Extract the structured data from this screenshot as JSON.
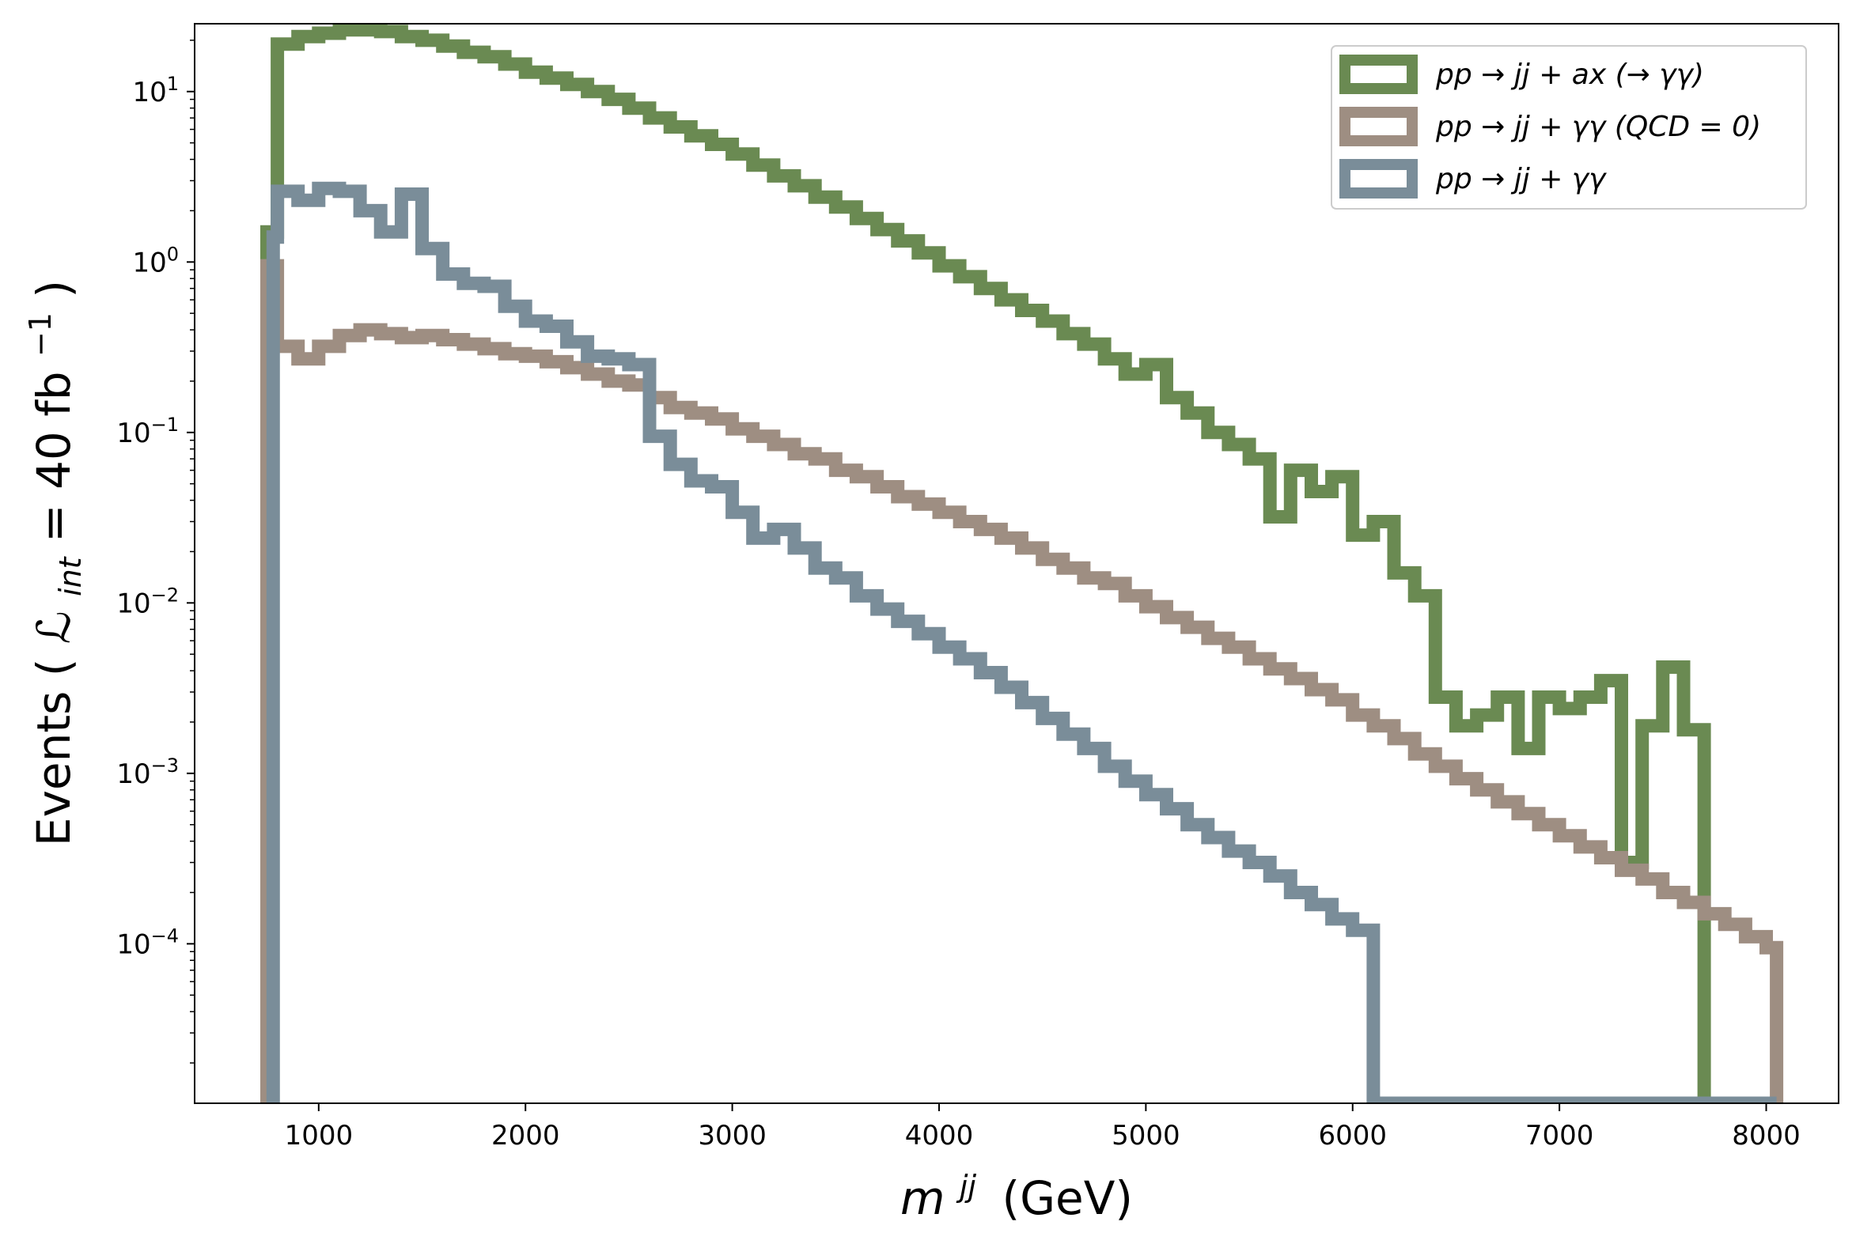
{
  "chart_data": {
    "type": "step-histogram",
    "xlabel": "m^{jj} (GeV)",
    "xlabel_main": "m",
    "xlabel_sup": "jj",
    "xlabel_unit": "(GeV)",
    "ylabel": "Events (ℒ_int = 40 fb⁻¹)",
    "ylabel_pre": "Events (",
    "ylabel_L": "ℒ",
    "ylabel_sub": "int",
    "ylabel_mid": " = 40 fb",
    "ylabel_sup": "−1",
    "ylabel_post": ")",
    "xlim": [
      400,
      8350
    ],
    "ylog": true,
    "ylim": [
      1.16e-05,
      25
    ],
    "x_ticks": [
      {
        "value": 1000,
        "label": "1000"
      },
      {
        "value": 2000,
        "label": "2000"
      },
      {
        "value": 3000,
        "label": "3000"
      },
      {
        "value": 4000,
        "label": "4000"
      },
      {
        "value": 5000,
        "label": "5000"
      },
      {
        "value": 6000,
        "label": "6000"
      },
      {
        "value": 7000,
        "label": "7000"
      },
      {
        "value": 8000,
        "label": "8000"
      }
    ],
    "y_ticks": [
      {
        "value": 10,
        "base": "10",
        "exp": "1"
      },
      {
        "value": 1,
        "base": "10",
        "exp": "0"
      },
      {
        "value": 0.1,
        "base": "10",
        "exp": "−1"
      },
      {
        "value": 0.01,
        "base": "10",
        "exp": "−2"
      },
      {
        "value": 0.001,
        "base": "10",
        "exp": "−3"
      },
      {
        "value": 0.0001,
        "base": "10",
        "exp": "−4"
      }
    ],
    "legend_position": "top-right",
    "series": [
      {
        "id": "signal",
        "label": "pp → jj + ax (→ γγ)",
        "color": "#6a8a52",
        "points": [
          [
            750,
            1.5
          ],
          [
            800,
            19
          ],
          [
            900,
            21
          ],
          [
            1000,
            22
          ],
          [
            1100,
            23
          ],
          [
            1200,
            23
          ],
          [
            1300,
            22.5
          ],
          [
            1400,
            21
          ],
          [
            1500,
            20
          ],
          [
            1600,
            18.5
          ],
          [
            1700,
            17
          ],
          [
            1800,
            16
          ],
          [
            1900,
            14.5
          ],
          [
            2000,
            13
          ],
          [
            2100,
            12
          ],
          [
            2200,
            11
          ],
          [
            2300,
            10
          ],
          [
            2400,
            9
          ],
          [
            2500,
            8
          ],
          [
            2600,
            7
          ],
          [
            2700,
            6.2
          ],
          [
            2800,
            5.5
          ],
          [
            2900,
            4.9
          ],
          [
            3000,
            4.3
          ],
          [
            3100,
            3.7
          ],
          [
            3200,
            3.2
          ],
          [
            3300,
            2.8
          ],
          [
            3400,
            2.4
          ],
          [
            3500,
            2.1
          ],
          [
            3600,
            1.8
          ],
          [
            3700,
            1.55
          ],
          [
            3800,
            1.33
          ],
          [
            3900,
            1.13
          ],
          [
            4000,
            0.95
          ],
          [
            4100,
            0.82
          ],
          [
            4200,
            0.7
          ],
          [
            4300,
            0.6
          ],
          [
            4400,
            0.52
          ],
          [
            4500,
            0.45
          ],
          [
            4600,
            0.38
          ],
          [
            4700,
            0.33
          ],
          [
            4800,
            0.27
          ],
          [
            4900,
            0.22
          ],
          [
            5000,
            0.25
          ],
          [
            5100,
            0.16
          ],
          [
            5200,
            0.13
          ],
          [
            5300,
            0.1
          ],
          [
            5400,
            0.085
          ],
          [
            5500,
            0.07
          ],
          [
            5600,
            0.032
          ],
          [
            5700,
            0.06
          ],
          [
            5800,
            0.045
          ],
          [
            5900,
            0.055
          ],
          [
            6000,
            0.025
          ],
          [
            6100,
            0.03
          ],
          [
            6200,
            0.015
          ],
          [
            6300,
            0.011
          ],
          [
            6400,
            0.0028
          ],
          [
            6500,
            0.0019
          ],
          [
            6600,
            0.0022
          ],
          [
            6700,
            0.0028
          ],
          [
            6800,
            0.0014
          ],
          [
            6900,
            0.0028
          ],
          [
            7000,
            0.0024
          ],
          [
            7100,
            0.0028
          ],
          [
            7200,
            0.0035
          ],
          [
            7300,
            0.0003
          ],
          [
            7400,
            0.0019
          ],
          [
            7500,
            0.0042
          ],
          [
            7600,
            0.0018
          ],
          [
            7700,
            1.16e-05
          ],
          [
            8050,
            1.16e-05
          ]
        ]
      },
      {
        "id": "qcd0",
        "label": "pp → jj + γγ (QCD = 0)",
        "color": "#9e8e82",
        "points": [
          [
            750,
            0.95
          ],
          [
            800,
            0.32
          ],
          [
            900,
            0.27
          ],
          [
            1000,
            0.32
          ],
          [
            1100,
            0.37
          ],
          [
            1200,
            0.4
          ],
          [
            1300,
            0.38
          ],
          [
            1400,
            0.36
          ],
          [
            1500,
            0.37
          ],
          [
            1600,
            0.35
          ],
          [
            1700,
            0.33
          ],
          [
            1800,
            0.31
          ],
          [
            1900,
            0.29
          ],
          [
            2000,
            0.28
          ],
          [
            2100,
            0.26
          ],
          [
            2200,
            0.24
          ],
          [
            2300,
            0.22
          ],
          [
            2400,
            0.2
          ],
          [
            2500,
            0.19
          ],
          [
            2600,
            0.16
          ],
          [
            2700,
            0.14
          ],
          [
            2800,
            0.13
          ],
          [
            2900,
            0.12
          ],
          [
            3000,
            0.105
          ],
          [
            3100,
            0.095
          ],
          [
            3200,
            0.085
          ],
          [
            3300,
            0.075
          ],
          [
            3400,
            0.07
          ],
          [
            3500,
            0.06
          ],
          [
            3600,
            0.055
          ],
          [
            3700,
            0.048
          ],
          [
            3800,
            0.042
          ],
          [
            3900,
            0.038
          ],
          [
            4000,
            0.034
          ],
          [
            4100,
            0.03
          ],
          [
            4200,
            0.027
          ],
          [
            4300,
            0.024
          ],
          [
            4400,
            0.021
          ],
          [
            4500,
            0.018
          ],
          [
            4600,
            0.016
          ],
          [
            4700,
            0.014
          ],
          [
            4800,
            0.013
          ],
          [
            4900,
            0.011
          ],
          [
            5000,
            0.0095
          ],
          [
            5100,
            0.0082
          ],
          [
            5200,
            0.0072
          ],
          [
            5300,
            0.0062
          ],
          [
            5400,
            0.0055
          ],
          [
            5500,
            0.0047
          ],
          [
            5600,
            0.0041
          ],
          [
            5700,
            0.0036
          ],
          [
            5800,
            0.0031
          ],
          [
            5900,
            0.0027
          ],
          [
            6000,
            0.0022
          ],
          [
            6100,
            0.0019
          ],
          [
            6200,
            0.0016
          ],
          [
            6300,
            0.0013
          ],
          [
            6400,
            0.0011
          ],
          [
            6500,
            0.00093
          ],
          [
            6600,
            0.0008
          ],
          [
            6700,
            0.00068
          ],
          [
            6800,
            0.00058
          ],
          [
            6900,
            0.0005
          ],
          [
            7000,
            0.00043
          ],
          [
            7100,
            0.00037
          ],
          [
            7200,
            0.00032
          ],
          [
            7300,
            0.00027
          ],
          [
            7400,
            0.00024
          ],
          [
            7500,
            0.0002
          ],
          [
            7600,
            0.000175
          ],
          [
            7700,
            0.00015
          ],
          [
            7800,
            0.00013
          ],
          [
            7900,
            0.00011
          ],
          [
            8000,
            9.5e-05
          ],
          [
            8050,
            1.16e-05
          ]
        ]
      },
      {
        "id": "full",
        "label": "pp → jj + γγ",
        "color": "#7a8d99",
        "points": [
          [
            750,
            1.16e-05
          ],
          [
            780,
            1.4
          ],
          [
            800,
            2.6
          ],
          [
            900,
            2.3
          ],
          [
            1000,
            2.7
          ],
          [
            1100,
            2.6
          ],
          [
            1200,
            2.0
          ],
          [
            1300,
            1.5
          ],
          [
            1400,
            2.5
          ],
          [
            1500,
            1.2
          ],
          [
            1600,
            0.85
          ],
          [
            1700,
            0.75
          ],
          [
            1800,
            0.72
          ],
          [
            1900,
            0.55
          ],
          [
            2000,
            0.45
          ],
          [
            2100,
            0.42
          ],
          [
            2200,
            0.34
          ],
          [
            2300,
            0.28
          ],
          [
            2400,
            0.27
          ],
          [
            2500,
            0.25
          ],
          [
            2600,
            0.095
          ],
          [
            2700,
            0.065
          ],
          [
            2800,
            0.052
          ],
          [
            2900,
            0.048
          ],
          [
            3000,
            0.034
          ],
          [
            3100,
            0.024
          ],
          [
            3200,
            0.027
          ],
          [
            3300,
            0.021
          ],
          [
            3400,
            0.016
          ],
          [
            3500,
            0.014
          ],
          [
            3600,
            0.011
          ],
          [
            3700,
            0.0092
          ],
          [
            3800,
            0.0078
          ],
          [
            3900,
            0.0066
          ],
          [
            4000,
            0.0055
          ],
          [
            4100,
            0.0047
          ],
          [
            4200,
            0.0039
          ],
          [
            4300,
            0.0032
          ],
          [
            4400,
            0.0026
          ],
          [
            4500,
            0.0021
          ],
          [
            4600,
            0.0017
          ],
          [
            4700,
            0.0014
          ],
          [
            4800,
            0.0011
          ],
          [
            4900,
            0.0009
          ],
          [
            5000,
            0.00075
          ],
          [
            5100,
            0.00062
          ],
          [
            5200,
            0.0005
          ],
          [
            5300,
            0.00042
          ],
          [
            5400,
            0.00035
          ],
          [
            5500,
            0.0003
          ],
          [
            5600,
            0.00025
          ],
          [
            5700,
            0.0002
          ],
          [
            5800,
            0.00017
          ],
          [
            5900,
            0.00014
          ],
          [
            6000,
            0.00012
          ],
          [
            6100,
            1.16e-05
          ],
          [
            8050,
            1.16e-05
          ]
        ]
      }
    ]
  }
}
